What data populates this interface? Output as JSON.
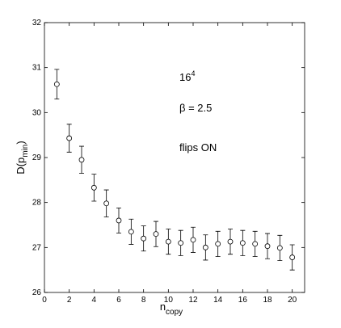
{
  "chart_data": {
    "type": "errorbar",
    "xlabel": {
      "main": "n",
      "sub": "copy"
    },
    "ylabel": {
      "main": "D(p",
      "sub": "min",
      "tail": ")"
    },
    "annotations": [
      {
        "main": "16",
        "sup": "4"
      },
      {
        "main": "β = 2.5"
      },
      {
        "main": "flips ON"
      }
    ],
    "xlim": [
      0,
      21
    ],
    "ylim": [
      26,
      32
    ],
    "xticks": [
      0,
      2,
      4,
      6,
      8,
      10,
      12,
      14,
      16,
      18,
      20
    ],
    "yticks": [
      26,
      27,
      28,
      29,
      30,
      31,
      32
    ],
    "series": [
      {
        "color": "#000000",
        "x": [
          1,
          2,
          3,
          4,
          5,
          6,
          7,
          8,
          9,
          10,
          11,
          12,
          13,
          14,
          15,
          16,
          17,
          18,
          19,
          20
        ],
        "values": [
          30.63,
          29.43,
          28.95,
          28.33,
          27.98,
          27.6,
          27.35,
          27.2,
          27.3,
          27.13,
          27.1,
          27.17,
          27.0,
          27.08,
          27.13,
          27.1,
          27.08,
          27.03,
          26.99,
          26.78
        ],
        "errors": [
          0.33,
          0.31,
          0.3,
          0.3,
          0.3,
          0.28,
          0.28,
          0.28,
          0.28,
          0.28,
          0.28,
          0.28,
          0.28,
          0.28,
          0.28,
          0.28,
          0.28,
          0.28,
          0.28,
          0.28
        ]
      }
    ]
  }
}
